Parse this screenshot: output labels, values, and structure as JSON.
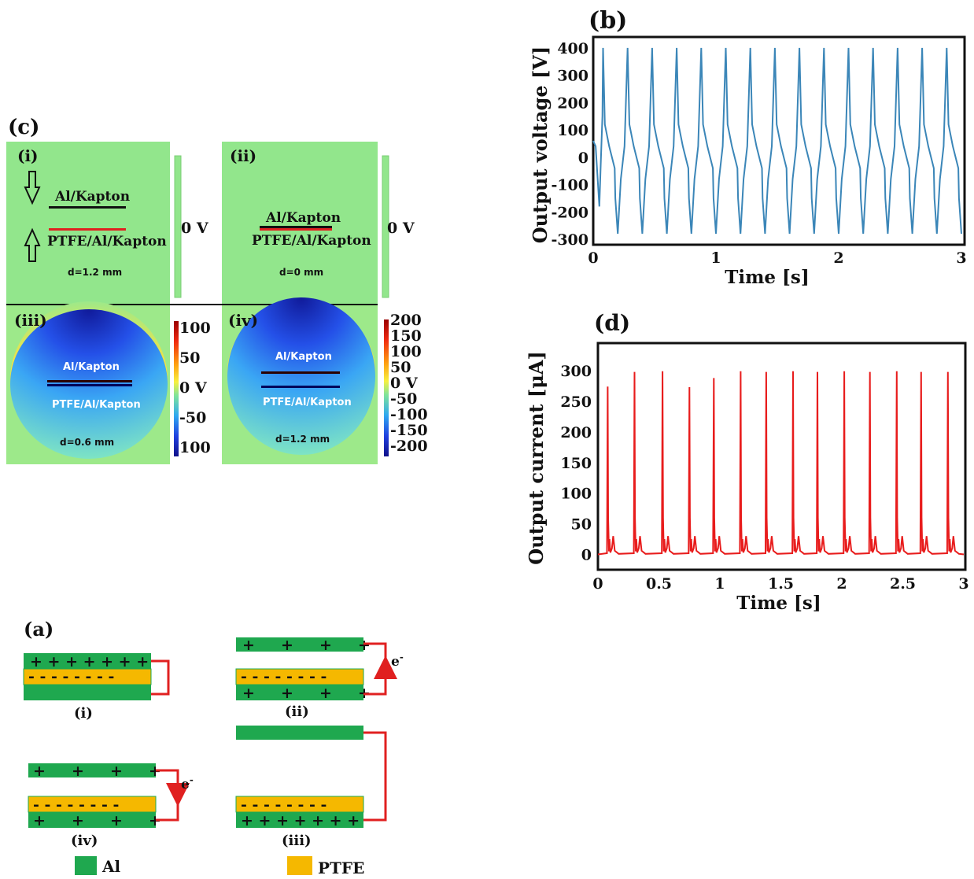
{
  "panels": {
    "a": {
      "label": "(a)",
      "states": [
        "(i)",
        "(ii)",
        "(iii)",
        "(iv)"
      ],
      "plus_dense": "+ + + + + + +",
      "plus_sparse": "+     +     +     +",
      "minus_row": "- - - - - - - -",
      "electron": "e",
      "electron_sup": "-",
      "legend_al": "Al",
      "legend_ptfe": "PTFE",
      "colors": {
        "al": "#1fa84f",
        "ptfe": "#f5b800",
        "wire": "#e02020"
      }
    },
    "c": {
      "label": "(c)",
      "subpanels": [
        {
          "tag": "(i)",
          "top_label": "Al/Kapton",
          "bottom_label": "PTFE/Al/Kapton",
          "gap": "d=1.2 mm",
          "potential": "0 V"
        },
        {
          "tag": "(ii)",
          "top_label": "Al/Kapton",
          "bottom_label": "PTFE/Al/Kapton",
          "gap": "d=0 mm",
          "potential": "0 V"
        },
        {
          "tag": "(iii)",
          "top_label": "Al/Kapton",
          "bottom_label": "PTFE/Al/Kapton",
          "gap": "d=0.6 mm",
          "colorbar": [
            "100",
            "50",
            "0 V",
            "-50",
            "100"
          ]
        },
        {
          "tag": "(iv)",
          "top_label": "Al/Kapton",
          "bottom_label": "PTFE/Al/Kapton",
          "gap": "d=1.2 mm",
          "colorbar": [
            "200",
            "150",
            "100",
            "50",
            "0 V",
            "-50",
            "-100",
            "-150",
            "-200"
          ]
        }
      ]
    }
  },
  "chart_data": [
    {
      "id": "b",
      "type": "line",
      "title": "(b)",
      "xlabel": "Time [s]",
      "ylabel": "Output voltage [V]",
      "xlim": [
        0,
        3
      ],
      "ylim": [
        -320,
        440
      ],
      "xticks": [
        "0",
        "1",
        "2",
        "3"
      ],
      "yticks": [
        "400",
        "300",
        "200",
        "100",
        "0",
        "-100",
        "-200",
        "-300"
      ],
      "color": "#3b86b8",
      "series": [
        {
          "period_s": 0.2,
          "first_peak_s": 0.08,
          "peak": 400,
          "trough": -280,
          "waveform_one_cycle": {
            "t_offset_s": [
              0,
              0.015,
              0.05,
              0.095,
              0.1,
              0.12,
              0.145,
              0.175,
              0.2
            ],
            "v": [
              400,
              120,
              40,
              -40,
              -150,
              -280,
              -80,
              40,
              400
            ]
          }
        }
      ]
    },
    {
      "id": "d",
      "type": "line",
      "title": "(d)",
      "xlabel": "Time [s]",
      "ylabel": "Output current [μA]",
      "xlim": [
        0,
        3
      ],
      "ylim": [
        -25,
        345
      ],
      "xticks": [
        "0",
        "0.5",
        "1",
        "1.5",
        "2",
        "2.5",
        "3"
      ],
      "yticks": [
        "300",
        "250",
        "200",
        "150",
        "100",
        "50",
        "0"
      ],
      "color": "#e81c1c",
      "series": [
        {
          "peak_times_s": [
            0.08,
            0.3,
            0.53,
            0.75,
            0.95,
            1.17,
            1.38,
            1.6,
            1.8,
            2.02,
            2.23,
            2.45,
            2.65,
            2.87
          ],
          "peak_values_uA": [
            274,
            298,
            299,
            273,
            288,
            299,
            298,
            299,
            298,
            299,
            298,
            299,
            298,
            298
          ],
          "secondary_peak_uA": 30,
          "baseline_uA": 0
        }
      ]
    }
  ]
}
